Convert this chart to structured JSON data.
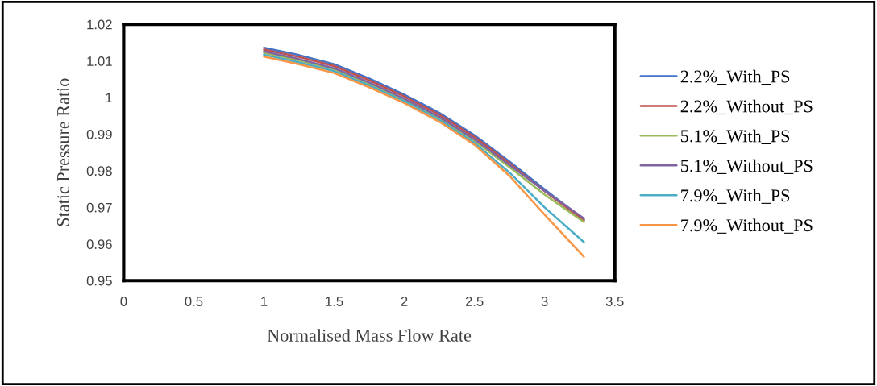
{
  "chart_data": {
    "type": "line",
    "xlabel": "Normalised Mass Flow Rate",
    "ylabel": "Static Pressure Ratio",
    "x": [
      1,
      1.25,
      1.5,
      1.75,
      2,
      2.25,
      2.5,
      2.75,
      3,
      3.28
    ],
    "series": [
      {
        "name": "2.2%_With_PS",
        "color": "#4472c4",
        "values": [
          1.0136,
          1.0116,
          1.0091,
          1.0052,
          1.0008,
          0.9958,
          0.9897,
          0.9825,
          0.9749,
          0.9667
        ]
      },
      {
        "name": "2.2%_Without_PS",
        "color": "#c0504d",
        "values": [
          1.0131,
          1.0111,
          1.0086,
          1.0047,
          1.0003,
          0.9953,
          0.9892,
          0.982,
          0.9744,
          0.9664
        ]
      },
      {
        "name": "5.1%_With_PS",
        "color": "#9bbb59",
        "values": [
          1.0122,
          1.0101,
          1.0077,
          1.0038,
          0.9994,
          0.9944,
          0.9882,
          0.981,
          0.9735,
          0.966
        ]
      },
      {
        "name": "5.1%_Without_PS",
        "color": "#8064a2",
        "values": [
          1.0126,
          1.0105,
          1.008,
          1.0041,
          0.9997,
          0.9947,
          0.9886,
          0.9816,
          0.9745,
          0.967
        ]
      },
      {
        "name": "7.9%_With_PS",
        "color": "#4bacc6",
        "values": [
          1.0117,
          1.0096,
          1.0072,
          1.0033,
          0.999,
          0.9939,
          0.9876,
          0.9795,
          0.97,
          0.9605
        ]
      },
      {
        "name": "7.9%_Without_PS",
        "color": "#f79646",
        "values": [
          1.0112,
          1.0091,
          1.0067,
          1.0028,
          0.9985,
          0.9934,
          0.9871,
          0.9786,
          0.968,
          0.9565
        ]
      }
    ],
    "xlim": [
      0,
      3.5
    ],
    "xticks": [
      0,
      0.5,
      1,
      1.5,
      2,
      2.5,
      3,
      3.5
    ],
    "ylim": [
      0.95,
      1.02
    ],
    "yticks": [
      0.95,
      0.96,
      0.97,
      0.98,
      0.99,
      1,
      1.01,
      1.02
    ],
    "legend": "right",
    "grid": false,
    "marker": "none",
    "line_style": "solid"
  }
}
